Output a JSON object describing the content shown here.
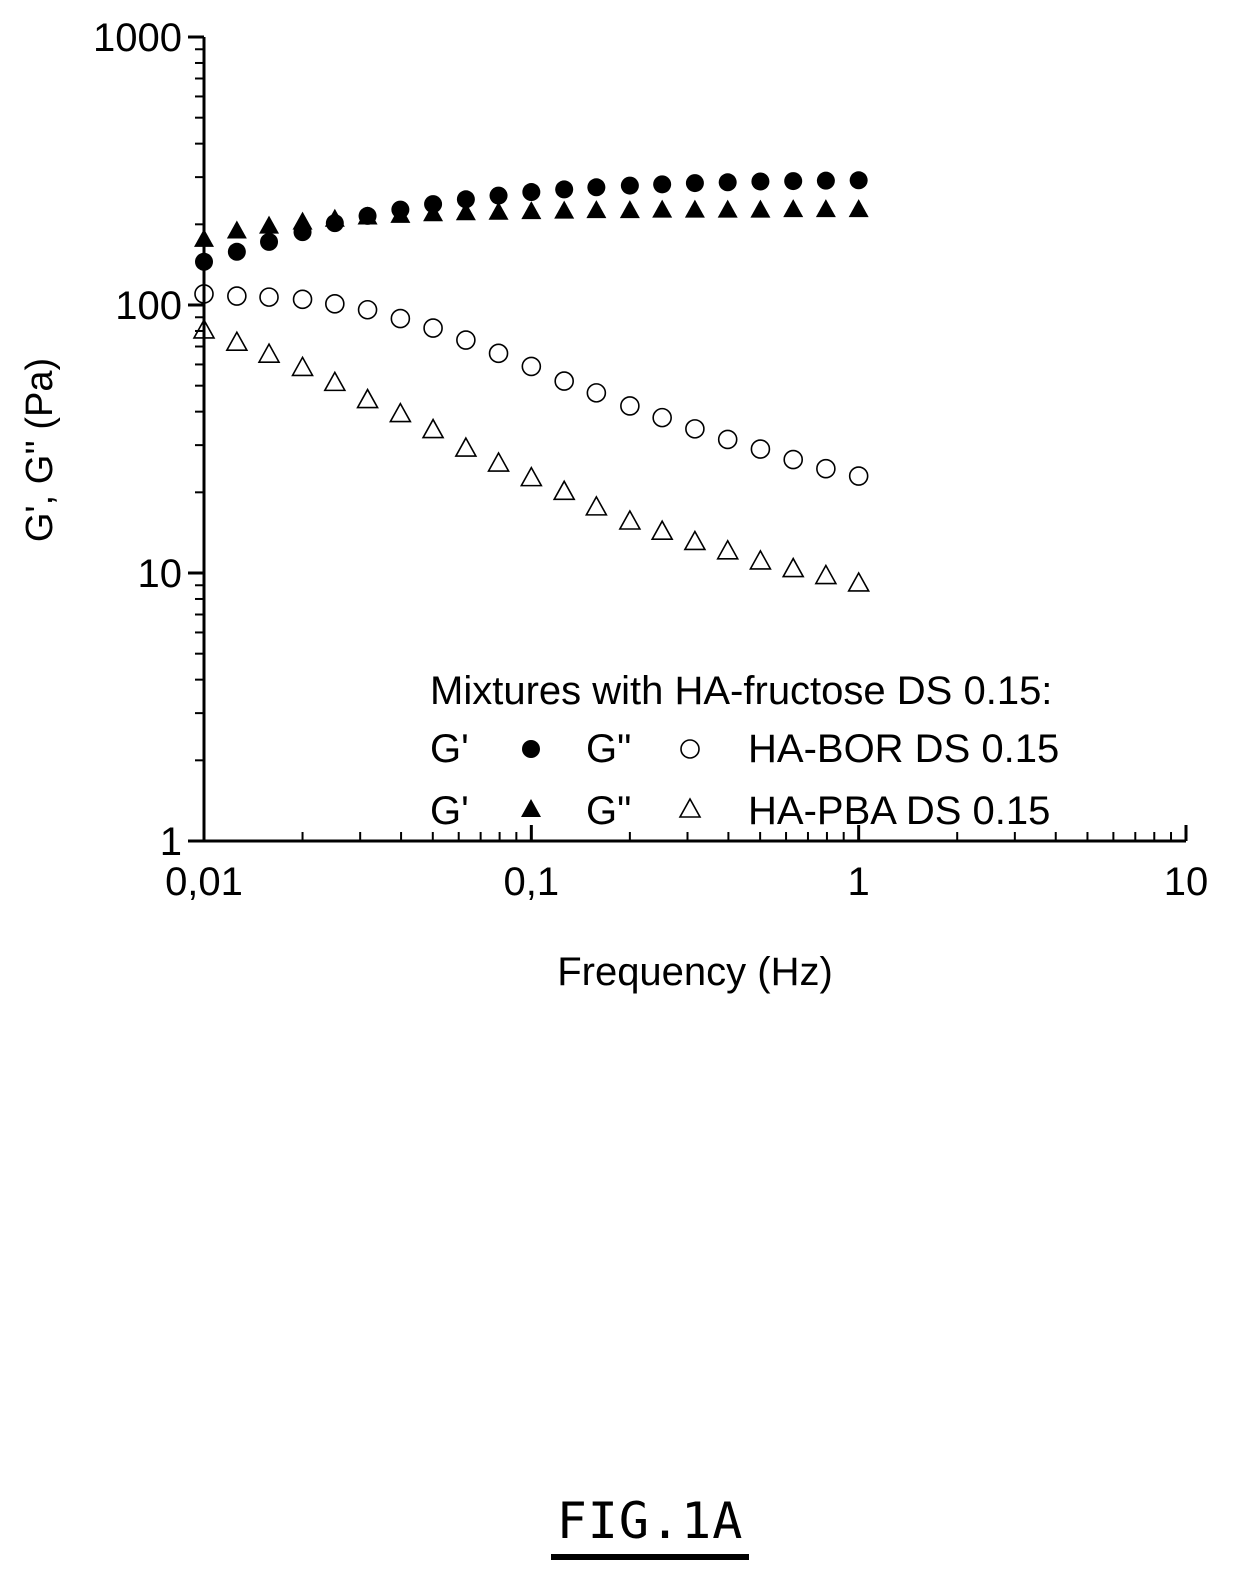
{
  "chart_data": {
    "type": "scatter",
    "title": "",
    "xlabel": "Frequency (Hz)",
    "ylabel": "G', G'' (Pa)",
    "xscale": "log",
    "yscale": "log",
    "xlim": [
      0.01,
      10
    ],
    "ylim": [
      1,
      1000
    ],
    "x_ticks": [
      {
        "value": 0.01,
        "label": "0,01"
      },
      {
        "value": 0.1,
        "label": "0,1"
      },
      {
        "value": 1,
        "label": "1"
      },
      {
        "value": 10,
        "label": "10"
      }
    ],
    "y_ticks": [
      {
        "value": 1,
        "label": "1"
      },
      {
        "value": 10,
        "label": "10"
      },
      {
        "value": 100,
        "label": "100"
      },
      {
        "value": 1000,
        "label": "1000"
      }
    ],
    "grid": false,
    "legend_position": "bottom-right",
    "legend": {
      "heading": "Mixtures with HA-fructose DS 0.15:",
      "rows": [
        {
          "g1_label": "G'",
          "g2_label": "G\"",
          "name": "HA-BOR DS 0.15"
        },
        {
          "g1_label": "G'",
          "g2_label": "G\"",
          "name": "HA-PBA DS 0.15"
        }
      ]
    },
    "x": [
      0.01,
      0.0126,
      0.0158,
      0.02,
      0.0251,
      0.0316,
      0.0398,
      0.0501,
      0.0631,
      0.0794,
      0.1,
      0.126,
      0.158,
      0.2,
      0.251,
      0.316,
      0.398,
      0.501,
      0.631,
      0.794,
      1.0
    ],
    "series": [
      {
        "sample": "HA-BOR DS 0.15",
        "modulus": "G'",
        "marker": "circle-filled",
        "values": [
          145,
          158,
          172,
          187,
          202,
          215,
          227,
          238,
          248,
          256,
          264,
          270,
          275,
          279,
          282,
          285,
          287,
          289,
          290,
          291,
          292
        ]
      },
      {
        "sample": "HA-BOR DS 0.15",
        "modulus": "G\"",
        "marker": "circle-open",
        "values": [
          110,
          108,
          107,
          105,
          101,
          96,
          89,
          82,
          74,
          66,
          59,
          52,
          47,
          42,
          38,
          34.5,
          31.5,
          29,
          26.5,
          24.5,
          23
        ]
      },
      {
        "sample": "HA-PBA DS 0.15",
        "modulus": "G'",
        "marker": "triangle-filled",
        "values": [
          175,
          188,
          196,
          203,
          208,
          212,
          215,
          218,
          220,
          221,
          222,
          223,
          224,
          224,
          225,
          225,
          225,
          225,
          226,
          226,
          226
        ]
      },
      {
        "sample": "HA-PBA DS 0.15",
        "modulus": "G\"",
        "marker": "triangle-open",
        "values": [
          80,
          72,
          65,
          58,
          51,
          44,
          39,
          34,
          29,
          25.5,
          22.5,
          20,
          17.5,
          15.5,
          14.2,
          13,
          12,
          11,
          10.3,
          9.7,
          9.1
        ]
      }
    ]
  },
  "caption": "FIG.1A"
}
